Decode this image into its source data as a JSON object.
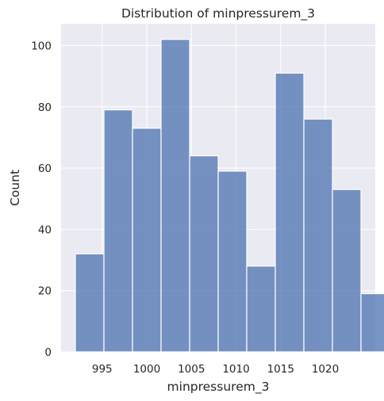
{
  "chart_data": {
    "type": "histogram",
    "title": "Distribution of minpressurem_3",
    "xlabel": "minpressurem_3",
    "ylabel": "Count",
    "bins": [
      {
        "start": 992.0,
        "end": 995.2,
        "count": 32
      },
      {
        "start": 995.2,
        "end": 998.4,
        "count": 79
      },
      {
        "start": 998.4,
        "end": 1001.6,
        "count": 73
      },
      {
        "start": 1001.6,
        "end": 1004.8,
        "count": 102
      },
      {
        "start": 1004.8,
        "end": 1008.0,
        "count": 64
      },
      {
        "start": 1008.0,
        "end": 1011.2,
        "count": 59
      },
      {
        "start": 1011.2,
        "end": 1014.4,
        "count": 28
      },
      {
        "start": 1014.4,
        "end": 1017.6,
        "count": 91
      },
      {
        "start": 1017.6,
        "end": 1020.8,
        "count": 76
      },
      {
        "start": 1020.8,
        "end": 1024.0,
        "count": 53
      },
      {
        "start": 1024.0,
        "end": 1027.2,
        "count": 19
      }
    ],
    "xticks": [
      995,
      1000,
      1005,
      1010,
      1015,
      1020
    ],
    "yticks": [
      0,
      20,
      40,
      60,
      80,
      100
    ],
    "xlim": [
      990.4,
      1025.6
    ],
    "ylim": [
      0,
      107.1
    ],
    "grid": true,
    "style": "seaborn-darkgrid",
    "bar_color": "#4c72b0",
    "background_color": "#eaeaf2"
  }
}
